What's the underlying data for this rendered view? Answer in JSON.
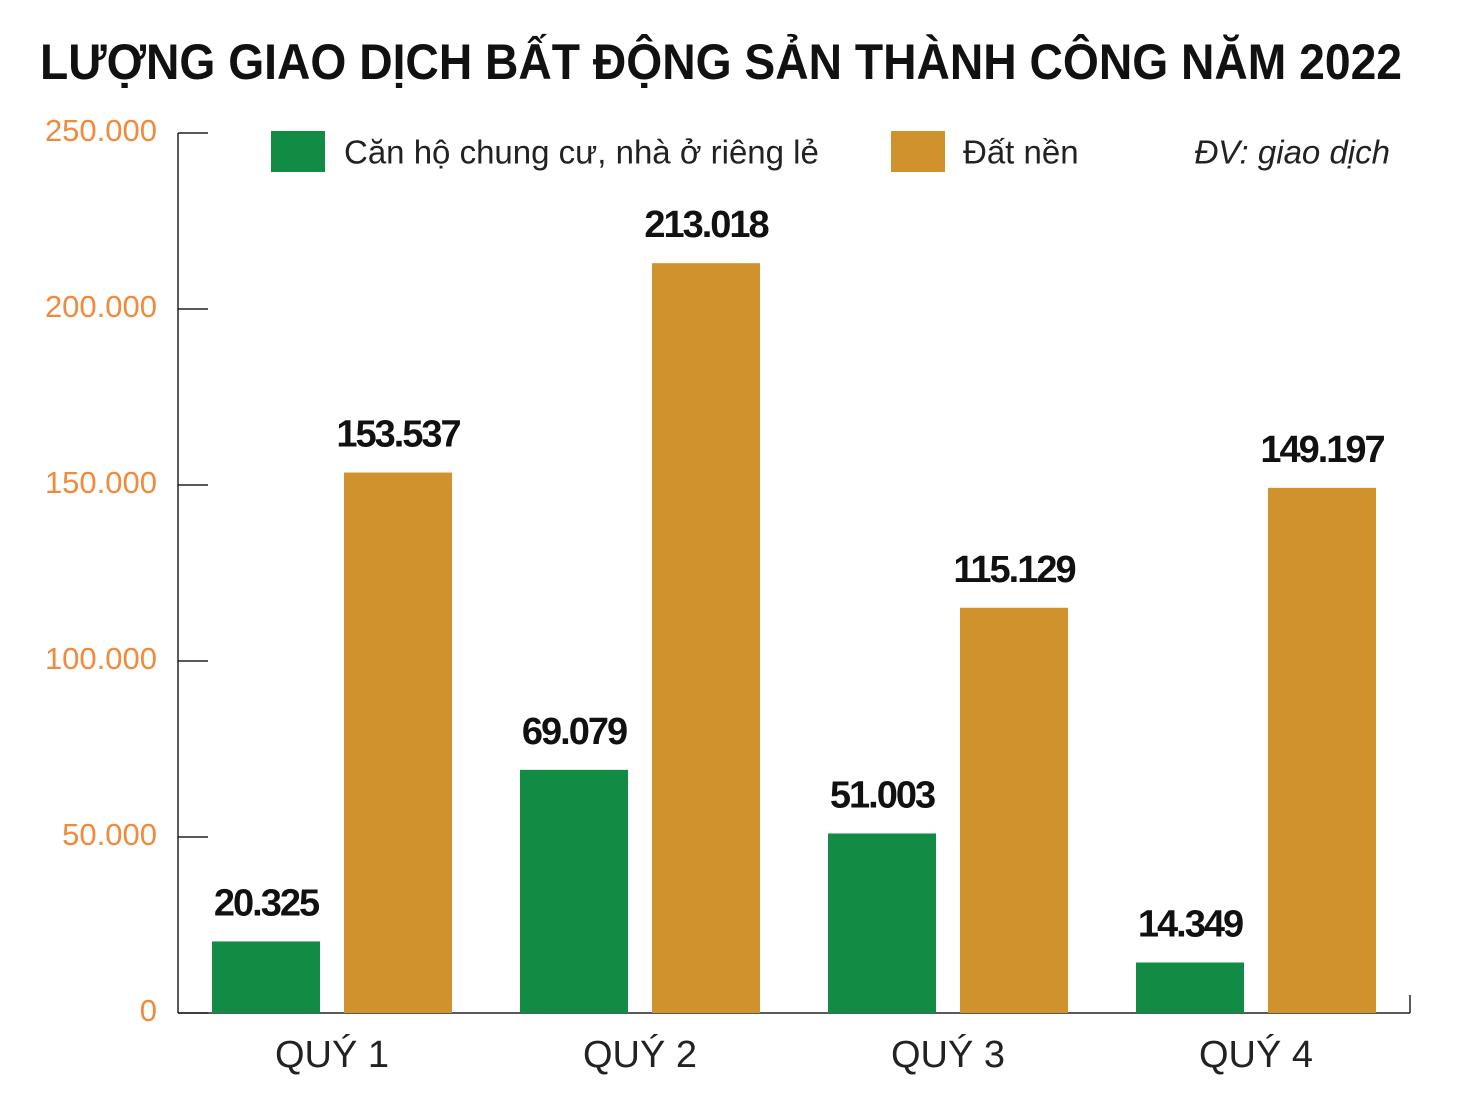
{
  "chart_data": {
    "type": "bar",
    "title": "LƯỢNG GIAO DỊCH BẤT ĐỘNG SẢN THÀNH CÔNG NĂM 2022",
    "annotation": "ĐV: giao dịch",
    "categories": [
      "QUÝ 1",
      "QUÝ 2",
      "QUÝ 3",
      "QUÝ 4"
    ],
    "series": [
      {
        "name": "Căn hộ chung cư, nhà ở riêng lẻ",
        "color": "#128c44",
        "values": [
          20325,
          69079,
          51003,
          14349
        ],
        "value_labels": [
          "20.325",
          "69.079",
          "51.003",
          "14.349"
        ]
      },
      {
        "name": "Đất nền",
        "color": "#d0922c",
        "values": [
          153537,
          213018,
          115129,
          149197
        ],
        "value_labels": [
          "153.537",
          "213.018",
          "115.129",
          "149.197"
        ]
      }
    ],
    "ylim": [
      0,
      250000
    ],
    "yticks": [
      0,
      {
        "value": 50000,
        "label": "50.000"
      },
      {
        "value": 100000,
        "label": "100.000"
      },
      {
        "value": 150000,
        "label": "150.000"
      },
      {
        "value": 200000,
        "label": "200.000"
      },
      {
        "value": 250000,
        "label": "250.000"
      }
    ],
    "grid": false
  }
}
